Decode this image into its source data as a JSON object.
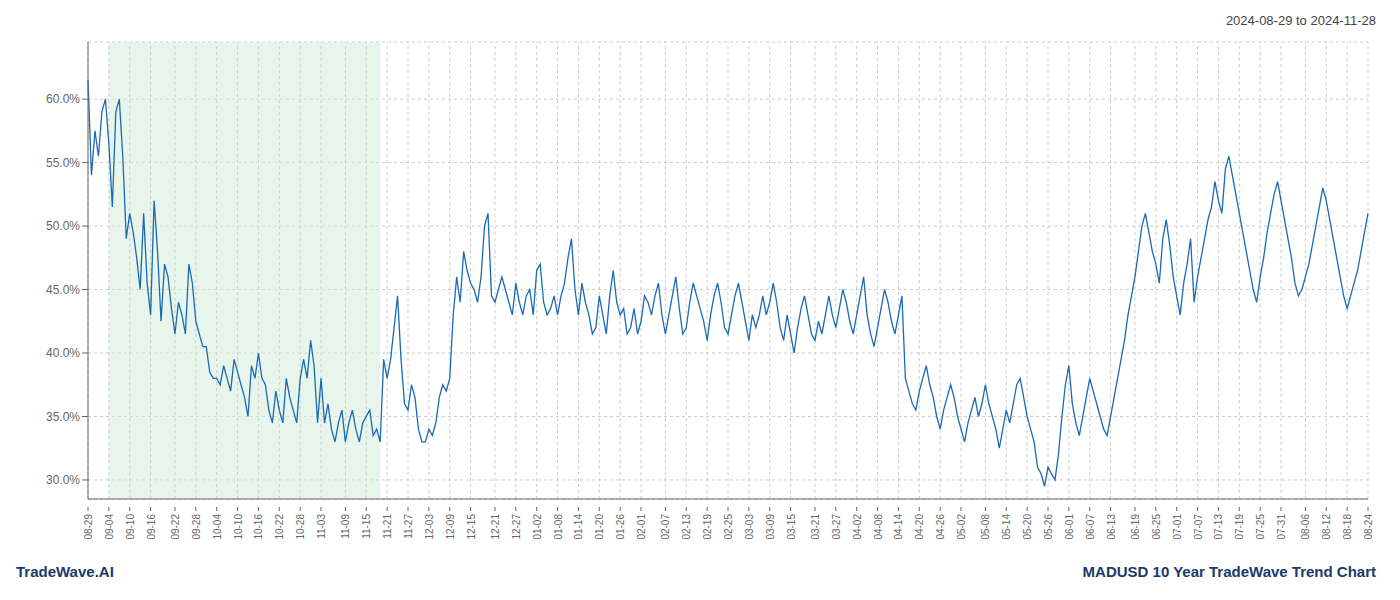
{
  "chart_data": {
    "type": "line",
    "title": "MADUSD 10 Year TradeWave Trend Chart",
    "subtitle": "2024-08-29 to 2024-11-28",
    "annotations": [
      "TradeWave.AI"
    ],
    "color": "#1a6ab5",
    "grid": true,
    "ylim": [
      0.285,
      0.645
    ],
    "yticks": [
      {
        "value": 0.3,
        "label": "30.0%"
      },
      {
        "value": 0.35,
        "label": "35.0%"
      },
      {
        "value": 0.4,
        "label": "40.0%"
      },
      {
        "value": 0.45,
        "label": "45.0%"
      },
      {
        "value": 0.5,
        "label": "50.0%"
      },
      {
        "value": 0.55,
        "label": "55.0%"
      },
      {
        "value": 0.6,
        "label": "60.0%"
      }
    ],
    "shade": {
      "x_start": 6,
      "x_end": 84,
      "color": "#d4edda"
    },
    "categories": [
      "08-29",
      null,
      null,
      null,
      null,
      null,
      "09-04",
      null,
      null,
      null,
      null,
      null,
      "09-10",
      null,
      null,
      null,
      null,
      null,
      "09-16",
      null,
      null,
      null,
      null,
      null,
      null,
      "09-22",
      null,
      null,
      null,
      null,
      null,
      "09-28",
      null,
      null,
      null,
      null,
      null,
      "10-04",
      null,
      null,
      null,
      null,
      null,
      "10-10",
      null,
      null,
      null,
      null,
      null,
      "10-16",
      null,
      null,
      null,
      null,
      null,
      "10-22",
      null,
      null,
      null,
      null,
      null,
      "10-28",
      null,
      null,
      null,
      null,
      null,
      "11-03",
      null,
      null,
      null,
      null,
      null,
      null,
      "11-09",
      null,
      null,
      null,
      null,
      null,
      "11-15",
      null,
      null,
      null,
      null,
      null,
      "11-21",
      null,
      null,
      null,
      null,
      null,
      "11-27",
      null,
      null,
      null,
      null,
      null,
      "12-03",
      null,
      null,
      null,
      null,
      null,
      "12-09",
      null,
      null,
      null,
      null,
      null,
      "12-15",
      null,
      null,
      null,
      null,
      null,
      null,
      "12-21",
      null,
      null,
      null,
      null,
      null,
      "12-27",
      null,
      null,
      null,
      null,
      null,
      "01-02",
      null,
      null,
      null,
      null,
      null,
      "01-08",
      null,
      null,
      null,
      null,
      null,
      "01-14",
      null,
      null,
      null,
      null,
      null,
      "01-20",
      null,
      null,
      null,
      null,
      null,
      "01-26",
      null,
      null,
      null,
      null,
      null,
      "02-01",
      null,
      null,
      null,
      null,
      null,
      null,
      "02-07",
      null,
      null,
      null,
      null,
      null,
      "02-13",
      null,
      null,
      null,
      null,
      null,
      "02-19",
      null,
      null,
      null,
      null,
      null,
      "02-25",
      null,
      null,
      null,
      null,
      null,
      "03-03",
      null,
      null,
      null,
      null,
      null,
      "03-09",
      null,
      null,
      null,
      null,
      null,
      "03-15",
      null,
      null,
      null,
      null,
      null,
      null,
      "03-21",
      null,
      null,
      null,
      null,
      null,
      "03-27",
      null,
      null,
      null,
      null,
      null,
      "04-02",
      null,
      null,
      null,
      null,
      null,
      "04-08",
      null,
      null,
      null,
      null,
      null,
      "04-14",
      null,
      null,
      null,
      null,
      null,
      "04-20",
      null,
      null,
      null,
      null,
      null,
      "04-26",
      null,
      null,
      null,
      null,
      null,
      "05-02",
      null,
      null,
      null,
      null,
      null,
      null,
      "05-08",
      null,
      null,
      null,
      null,
      null,
      "05-14",
      null,
      null,
      null,
      null,
      null,
      "05-20",
      null,
      null,
      null,
      null,
      null,
      "05-26",
      null,
      null,
      null,
      null,
      null,
      "06-01",
      null,
      null,
      null,
      null,
      null,
      "06-07",
      null,
      null,
      null,
      null,
      null,
      "06-13",
      null,
      null,
      null,
      null,
      null,
      null,
      "06-19",
      null,
      null,
      null,
      null,
      null,
      "06-25",
      null,
      null,
      null,
      null,
      null,
      "07-01",
      null,
      null,
      null,
      null,
      null,
      "07-07",
      null,
      null,
      null,
      null,
      null,
      "07-13",
      null,
      null,
      null,
      null,
      null,
      "07-19",
      null,
      null,
      null,
      null,
      null,
      "07-25",
      null,
      null,
      null,
      null,
      null,
      "07-31",
      null,
      null,
      null,
      null,
      null,
      null,
      "08-06",
      null,
      null,
      null,
      null,
      null,
      "08-12",
      null,
      null,
      null,
      null,
      null,
      "08-18",
      null,
      null,
      null,
      null,
      null,
      "08-24"
    ],
    "values": [
      0.615,
      0.54,
      0.575,
      0.555,
      0.59,
      0.6,
      0.565,
      0.515,
      0.59,
      0.6,
      0.555,
      0.49,
      0.51,
      0.495,
      0.475,
      0.45,
      0.51,
      0.455,
      0.43,
      0.52,
      0.48,
      0.425,
      0.47,
      0.46,
      0.435,
      0.415,
      0.44,
      0.43,
      0.415,
      0.47,
      0.455,
      0.425,
      0.415,
      0.405,
      0.405,
      0.385,
      0.38,
      0.38,
      0.375,
      0.39,
      0.38,
      0.37,
      0.395,
      0.385,
      0.375,
      0.365,
      0.35,
      0.39,
      0.38,
      0.4,
      0.38,
      0.375,
      0.355,
      0.345,
      0.37,
      0.355,
      0.345,
      0.38,
      0.365,
      0.355,
      0.345,
      0.38,
      0.395,
      0.38,
      0.41,
      0.39,
      0.345,
      0.38,
      0.345,
      0.36,
      0.34,
      0.33,
      0.345,
      0.355,
      0.33,
      0.345,
      0.355,
      0.34,
      0.33,
      0.345,
      0.35,
      0.355,
      0.335,
      0.34,
      0.33,
      0.395,
      0.38,
      0.395,
      0.42,
      0.445,
      0.395,
      0.36,
      0.355,
      0.375,
      0.365,
      0.34,
      0.33,
      0.33,
      0.34,
      0.335,
      0.345,
      0.365,
      0.375,
      0.37,
      0.38,
      0.43,
      0.46,
      0.44,
      0.48,
      0.465,
      0.455,
      0.45,
      0.44,
      0.46,
      0.5,
      0.51,
      0.445,
      0.44,
      0.45,
      0.46,
      0.45,
      0.44,
      0.43,
      0.455,
      0.44,
      0.43,
      0.445,
      0.45,
      0.43,
      0.465,
      0.47,
      0.44,
      0.43,
      0.435,
      0.445,
      0.43,
      0.445,
      0.455,
      0.475,
      0.49,
      0.45,
      0.43,
      0.455,
      0.44,
      0.43,
      0.415,
      0.42,
      0.445,
      0.43,
      0.415,
      0.445,
      0.465,
      0.44,
      0.43,
      0.435,
      0.415,
      0.42,
      0.435,
      0.415,
      0.425,
      0.445,
      0.44,
      0.43,
      0.445,
      0.455,
      0.43,
      0.415,
      0.43,
      0.445,
      0.46,
      0.435,
      0.415,
      0.42,
      0.44,
      0.455,
      0.445,
      0.435,
      0.425,
      0.41,
      0.43,
      0.445,
      0.455,
      0.44,
      0.42,
      0.415,
      0.43,
      0.445,
      0.455,
      0.44,
      0.425,
      0.41,
      0.43,
      0.42,
      0.43,
      0.445,
      0.43,
      0.44,
      0.455,
      0.44,
      0.42,
      0.41,
      0.43,
      0.415,
      0.4,
      0.42,
      0.435,
      0.445,
      0.43,
      0.415,
      0.41,
      0.425,
      0.415,
      0.43,
      0.445,
      0.43,
      0.42,
      0.435,
      0.45,
      0.44,
      0.425,
      0.415,
      0.43,
      0.445,
      0.46,
      0.43,
      0.415,
      0.405,
      0.42,
      0.435,
      0.45,
      0.44,
      0.425,
      0.415,
      0.43,
      0.445,
      0.38,
      0.37,
      0.36,
      0.355,
      0.37,
      0.38,
      0.39,
      0.375,
      0.365,
      0.35,
      0.34,
      0.355,
      0.365,
      0.375,
      0.365,
      0.35,
      0.34,
      0.33,
      0.345,
      0.355,
      0.365,
      0.35,
      0.36,
      0.375,
      0.36,
      0.35,
      0.34,
      0.325,
      0.34,
      0.355,
      0.345,
      0.36,
      0.375,
      0.38,
      0.365,
      0.35,
      0.34,
      0.33,
      0.31,
      0.305,
      0.295,
      0.31,
      0.305,
      0.3,
      0.32,
      0.35,
      0.375,
      0.39,
      0.36,
      0.345,
      0.335,
      0.35,
      0.365,
      0.38,
      0.37,
      0.36,
      0.35,
      0.34,
      0.335,
      0.35,
      0.365,
      0.38,
      0.395,
      0.41,
      0.43,
      0.445,
      0.46,
      0.48,
      0.5,
      0.51,
      0.495,
      0.48,
      0.47,
      0.455,
      0.49,
      0.505,
      0.485,
      0.46,
      0.445,
      0.43,
      0.455,
      0.47,
      0.49,
      0.44,
      0.46,
      0.475,
      0.49,
      0.505,
      0.515,
      0.535,
      0.52,
      0.51,
      0.545,
      0.555,
      0.54,
      0.525,
      0.51,
      0.495,
      0.48,
      0.465,
      0.45,
      0.44,
      0.46,
      0.475,
      0.495,
      0.51,
      0.525,
      0.535,
      0.52,
      0.505,
      0.49,
      0.475,
      0.455,
      0.445,
      0.45,
      0.46,
      0.47,
      0.485,
      0.5,
      0.515,
      0.53,
      0.52,
      0.505,
      0.49,
      0.475,
      0.46,
      0.445,
      0.435,
      0.445,
      0.455,
      0.465,
      0.48,
      0.495,
      0.51
    ]
  }
}
